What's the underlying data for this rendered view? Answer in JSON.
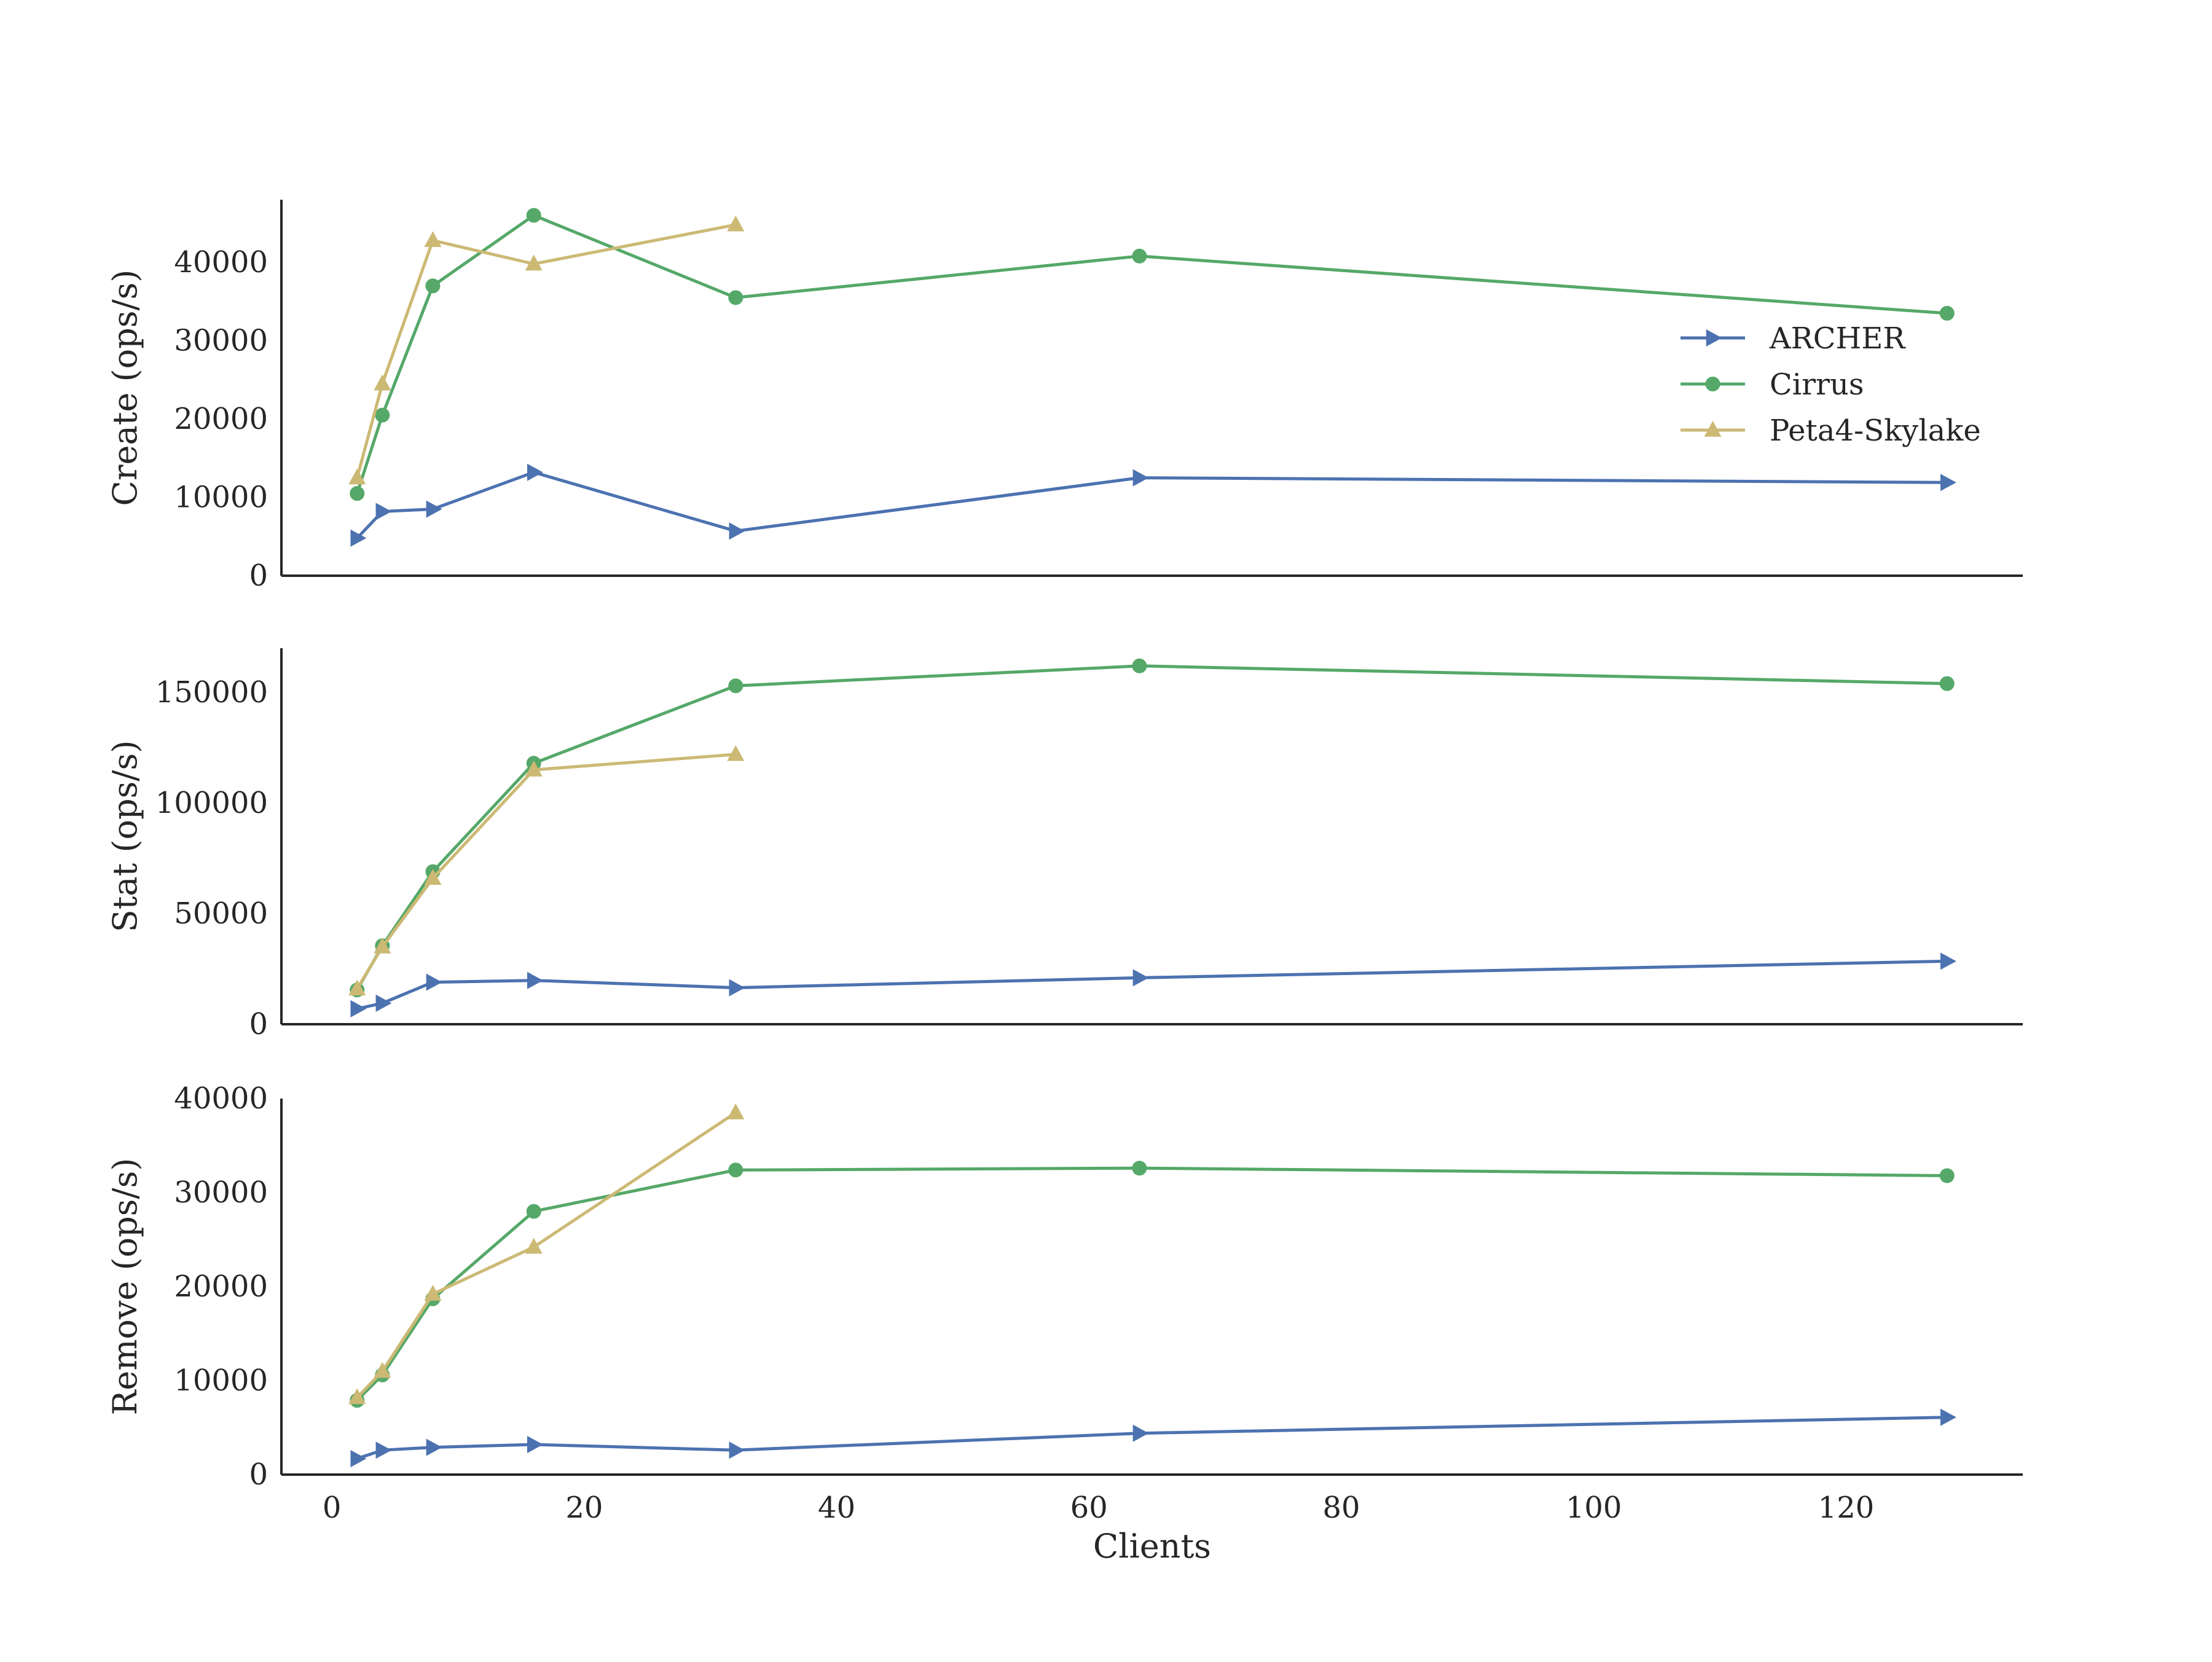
{
  "chart_data": [
    {
      "type": "line",
      "ylabel": "Create (ops/s)",
      "xlabel": "",
      "xlim": [
        -4,
        134
      ],
      "ylim": [
        0,
        48000
      ],
      "yticks": [
        0,
        10000,
        20000,
        30000,
        40000
      ],
      "xticks": [],
      "legend": "right",
      "series": [
        {
          "name": "ARCHER",
          "color": "#4c72b0",
          "marker": "triangle-right",
          "x": [
            2,
            4,
            8,
            16,
            32,
            64,
            128
          ],
          "y": [
            4800,
            8200,
            8500,
            13200,
            5700,
            12500,
            11900
          ]
        },
        {
          "name": "Cirrus",
          "color": "#55a868",
          "marker": "circle",
          "x": [
            2,
            4,
            8,
            16,
            32,
            64,
            128
          ],
          "y": [
            10500,
            20500,
            37000,
            46000,
            35500,
            40800,
            33500
          ]
        },
        {
          "name": "Peta4-Skylake",
          "color": "#ccb974",
          "marker": "triangle-up",
          "x": [
            2,
            4,
            8,
            16,
            32
          ],
          "y": [
            12500,
            24500,
            42800,
            39800,
            44800
          ]
        }
      ]
    },
    {
      "type": "line",
      "ylabel": "Stat (ops/s)",
      "xlabel": "",
      "xlim": [
        -4,
        134
      ],
      "ylim": [
        0,
        170000
      ],
      "yticks": [
        0,
        50000,
        100000,
        150000
      ],
      "xticks": [],
      "series": [
        {
          "name": "ARCHER",
          "color": "#4c72b0",
          "marker": "triangle-right",
          "x": [
            2,
            4,
            8,
            16,
            32,
            64,
            128
          ],
          "y": [
            7000,
            9500,
            19000,
            19800,
            16500,
            21000,
            28500
          ]
        },
        {
          "name": "Cirrus",
          "color": "#55a868",
          "marker": "circle",
          "x": [
            2,
            4,
            8,
            16,
            32,
            64,
            128
          ],
          "y": [
            15500,
            35500,
            69000,
            118000,
            153000,
            162000,
            154000
          ]
        },
        {
          "name": "Peta4-Skylake",
          "color": "#ccb974",
          "marker": "triangle-up",
          "x": [
            2,
            4,
            8,
            16,
            32
          ],
          "y": [
            16000,
            35000,
            66000,
            115000,
            122000
          ]
        }
      ]
    },
    {
      "type": "line",
      "ylabel": "Remove (ops/s)",
      "xlabel": "Clients",
      "xlim": [
        -4,
        134
      ],
      "ylim": [
        0,
        40000
      ],
      "yticks": [
        0,
        10000,
        20000,
        30000,
        40000
      ],
      "xticks": [
        0,
        20,
        40,
        60,
        80,
        100,
        120
      ],
      "series": [
        {
          "name": "ARCHER",
          "color": "#4c72b0",
          "marker": "triangle-right",
          "x": [
            2,
            4,
            8,
            16,
            32,
            64,
            128
          ],
          "y": [
            1700,
            2600,
            2900,
            3200,
            2600,
            4400,
            6100
          ]
        },
        {
          "name": "Cirrus",
          "color": "#55a868",
          "marker": "circle",
          "x": [
            2,
            4,
            8,
            16,
            32,
            64,
            128
          ],
          "y": [
            7900,
            10600,
            18700,
            28000,
            32400,
            32600,
            31800
          ]
        },
        {
          "name": "Peta4-Skylake",
          "color": "#ccb974",
          "marker": "triangle-up",
          "x": [
            2,
            4,
            8,
            16,
            32
          ],
          "y": [
            8200,
            11000,
            19200,
            24200,
            38500
          ]
        }
      ]
    }
  ]
}
